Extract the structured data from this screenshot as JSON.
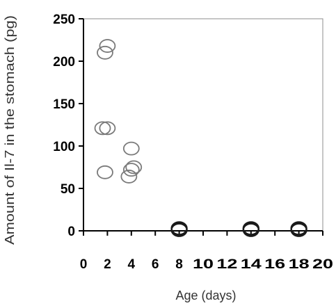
{
  "chart_data": {
    "type": "scatter",
    "title": "",
    "xlabel": "Age (days)",
    "ylabel": "Amount of Il-7 in the stomach (pg)",
    "xlim": [
      0,
      20
    ],
    "ylim": [
      0,
      250
    ],
    "xticks": [
      "0",
      "2",
      "4",
      "6",
      "8",
      "10",
      "12",
      "14",
      "16",
      "18",
      "20"
    ],
    "yticks": [
      "0",
      "50",
      "100",
      "150",
      "200",
      "250"
    ],
    "grid": false,
    "legend": "none",
    "marker": "open-circle",
    "colors": {
      "marker": "#7a7a7a",
      "marker_dark": "#1a1a1a",
      "axis": "#000000"
    },
    "series": [
      {
        "x": [
          2.0,
          1.8,
          1.6,
          2.0,
          1.8,
          4.0,
          4.2,
          4.0,
          3.8,
          8.0,
          8.0,
          8.0,
          14.0,
          14.0,
          14.0,
          18.0,
          18.0,
          18.0
        ],
        "y": [
          218,
          210,
          121,
          121,
          69,
          97,
          75,
          72,
          64,
          2,
          1,
          3,
          2,
          1,
          3,
          2,
          1,
          3
        ]
      }
    ]
  }
}
